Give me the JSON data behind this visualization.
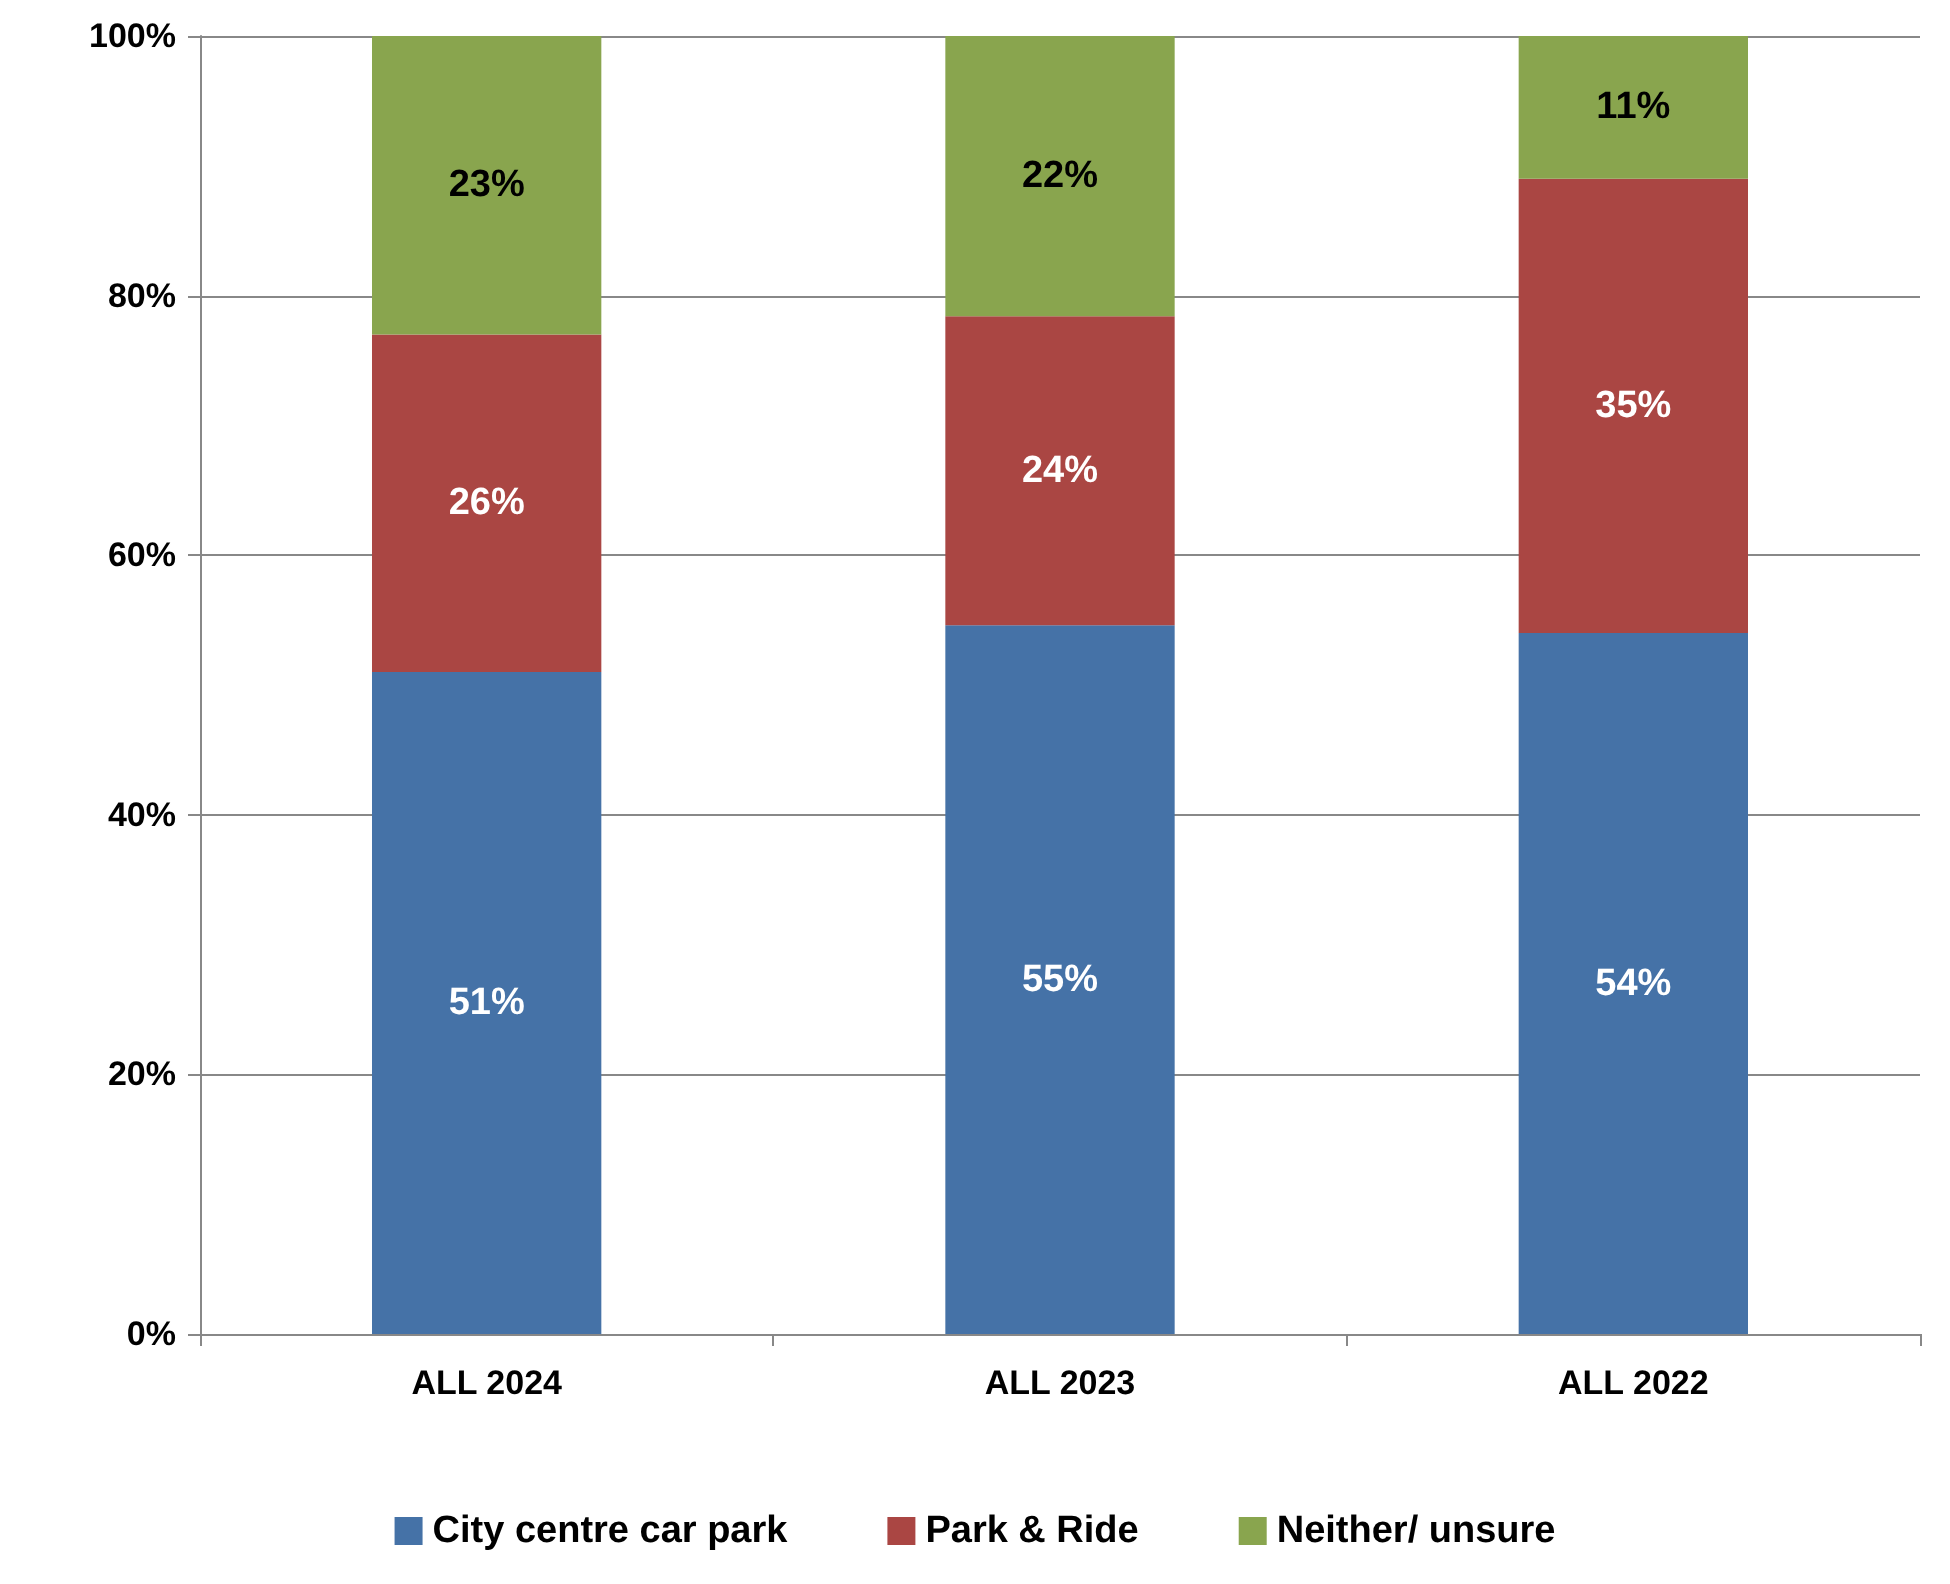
{
  "chart_data": {
    "type": "bar",
    "stacked": true,
    "categories": [
      "ALL 2024",
      "ALL 2023",
      "ALL 2022"
    ],
    "series": [
      {
        "name": "City centre car park",
        "color": "#4572a7",
        "values": [
          51,
          54.6,
          54
        ],
        "value_labels": [
          "51%",
          "55%",
          "54%"
        ]
      },
      {
        "name": "Park & Ride",
        "color": "#aa4643",
        "values": [
          26,
          23.8,
          35
        ],
        "value_labels": [
          "26%",
          "24%",
          "35%"
        ]
      },
      {
        "name": "Neither/ unsure",
        "color": "#89a54e",
        "values": [
          23,
          21.6,
          11
        ],
        "value_labels": [
          "23%",
          "22%",
          "11%"
        ]
      }
    ],
    "ylim": [
      0,
      100
    ],
    "yticks": [
      {
        "value": 0,
        "label": "0%"
      },
      {
        "value": 20,
        "label": "20%"
      },
      {
        "value": 40,
        "label": "40%"
      },
      {
        "value": 60,
        "label": "60%"
      },
      {
        "value": 80,
        "label": "80%"
      },
      {
        "value": 100,
        "label": "100%"
      }
    ],
    "grid": "y",
    "legend": "bottom"
  }
}
